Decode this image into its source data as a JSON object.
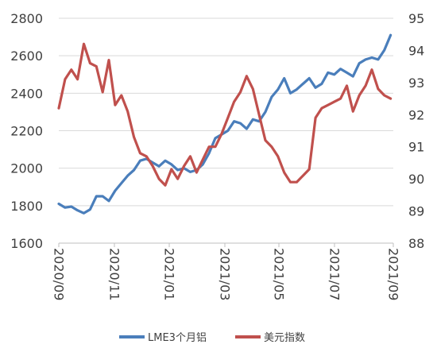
{
  "chart_data": {
    "type": "line",
    "x_ticks": [
      "2020/09",
      "2020/11",
      "2021/01",
      "2021/03",
      "2021/05",
      "2021/07",
      "2021/09"
    ],
    "x_range": [
      "2020-09-01",
      "2021-09-10"
    ],
    "left_axis": {
      "ticks": [
        "1600",
        "1800",
        "2000",
        "2200",
        "2400",
        "2600",
        "2800"
      ],
      "ylim": [
        1600,
        2800
      ]
    },
    "right_axis": {
      "ticks": [
        "88",
        "89",
        "90",
        "91",
        "92",
        "93",
        "94",
        "95"
      ],
      "ylim": [
        88,
        95
      ]
    },
    "grid": "horizontal, left axis",
    "legend_position": "bottom",
    "series": [
      {
        "name": "LME3个月铝",
        "axis": "left",
        "color": "#4a7ebb",
        "points": [
          [
            "2020-09-01",
            1810
          ],
          [
            "2020-09-08",
            1790
          ],
          [
            "2020-09-15",
            1795
          ],
          [
            "2020-09-22",
            1775
          ],
          [
            "2020-09-29",
            1760
          ],
          [
            "2020-10-06",
            1780
          ],
          [
            "2020-10-13",
            1850
          ],
          [
            "2020-10-20",
            1850
          ],
          [
            "2020-10-27",
            1825
          ],
          [
            "2020-11-03",
            1880
          ],
          [
            "2020-11-10",
            1920
          ],
          [
            "2020-11-17",
            1960
          ],
          [
            "2020-11-24",
            1990
          ],
          [
            "2020-12-01",
            2040
          ],
          [
            "2020-12-08",
            2050
          ],
          [
            "2020-12-15",
            2030
          ],
          [
            "2020-12-22",
            2010
          ],
          [
            "2020-12-29",
            2040
          ],
          [
            "2021-01-05",
            2020
          ],
          [
            "2021-01-12",
            1990
          ],
          [
            "2021-01-19",
            2000
          ],
          [
            "2021-01-26",
            1980
          ],
          [
            "2021-02-02",
            1990
          ],
          [
            "2021-02-09",
            2020
          ],
          [
            "2021-02-16",
            2080
          ],
          [
            "2021-02-23",
            2160
          ],
          [
            "2021-03-02",
            2180
          ],
          [
            "2021-03-09",
            2200
          ],
          [
            "2021-03-16",
            2250
          ],
          [
            "2021-03-23",
            2240
          ],
          [
            "2021-03-30",
            2210
          ],
          [
            "2021-04-06",
            2260
          ],
          [
            "2021-04-13",
            2250
          ],
          [
            "2021-04-20",
            2300
          ],
          [
            "2021-04-27",
            2380
          ],
          [
            "2021-05-04",
            2420
          ],
          [
            "2021-05-11",
            2480
          ],
          [
            "2021-05-18",
            2400
          ],
          [
            "2021-05-25",
            2420
          ],
          [
            "2021-06-01",
            2450
          ],
          [
            "2021-06-08",
            2480
          ],
          [
            "2021-06-15",
            2430
          ],
          [
            "2021-06-22",
            2450
          ],
          [
            "2021-06-29",
            2510
          ],
          [
            "2021-07-06",
            2500
          ],
          [
            "2021-07-13",
            2530
          ],
          [
            "2021-07-20",
            2510
          ],
          [
            "2021-07-27",
            2490
          ],
          [
            "2021-08-03",
            2560
          ],
          [
            "2021-08-10",
            2580
          ],
          [
            "2021-08-17",
            2590
          ],
          [
            "2021-08-24",
            2580
          ],
          [
            "2021-08-31",
            2630
          ],
          [
            "2021-09-07",
            2710
          ]
        ]
      },
      {
        "name": "美元指数",
        "axis": "right",
        "color": "#c0504d",
        "points": [
          [
            "2020-09-01",
            92.2
          ],
          [
            "2020-09-08",
            93.1
          ],
          [
            "2020-09-15",
            93.4
          ],
          [
            "2020-09-22",
            93.1
          ],
          [
            "2020-09-29",
            94.2
          ],
          [
            "2020-10-06",
            93.6
          ],
          [
            "2020-10-13",
            93.5
          ],
          [
            "2020-10-20",
            92.7
          ],
          [
            "2020-10-27",
            93.7
          ],
          [
            "2020-11-03",
            92.3
          ],
          [
            "2020-11-10",
            92.6
          ],
          [
            "2020-11-17",
            92.1
          ],
          [
            "2020-11-24",
            91.3
          ],
          [
            "2020-12-01",
            90.8
          ],
          [
            "2020-12-08",
            90.7
          ],
          [
            "2020-12-15",
            90.4
          ],
          [
            "2020-12-22",
            90.0
          ],
          [
            "2020-12-29",
            89.8
          ],
          [
            "2021-01-05",
            90.3
          ],
          [
            "2021-01-12",
            90.0
          ],
          [
            "2021-01-19",
            90.4
          ],
          [
            "2021-01-26",
            90.7
          ],
          [
            "2021-02-02",
            90.2
          ],
          [
            "2021-02-09",
            90.6
          ],
          [
            "2021-02-16",
            91.0
          ],
          [
            "2021-02-23",
            91.0
          ],
          [
            "2021-03-02",
            91.4
          ],
          [
            "2021-03-09",
            91.9
          ],
          [
            "2021-03-16",
            92.4
          ],
          [
            "2021-03-23",
            92.7
          ],
          [
            "2021-03-30",
            93.2
          ],
          [
            "2021-04-06",
            92.8
          ],
          [
            "2021-04-13",
            92.0
          ],
          [
            "2021-04-20",
            91.2
          ],
          [
            "2021-04-27",
            91.0
          ],
          [
            "2021-05-04",
            90.7
          ],
          [
            "2021-05-11",
            90.2
          ],
          [
            "2021-05-18",
            89.9
          ],
          [
            "2021-05-25",
            89.9
          ],
          [
            "2021-06-01",
            90.1
          ],
          [
            "2021-06-08",
            90.3
          ],
          [
            "2021-06-15",
            91.9
          ],
          [
            "2021-06-22",
            92.2
          ],
          [
            "2021-06-29",
            92.3
          ],
          [
            "2021-07-06",
            92.4
          ],
          [
            "2021-07-13",
            92.5
          ],
          [
            "2021-07-20",
            92.9
          ],
          [
            "2021-07-27",
            92.1
          ],
          [
            "2021-08-03",
            92.6
          ],
          [
            "2021-08-10",
            92.9
          ],
          [
            "2021-08-17",
            93.4
          ],
          [
            "2021-08-24",
            92.8
          ],
          [
            "2021-08-31",
            92.6
          ],
          [
            "2021-09-07",
            92.5
          ]
        ]
      }
    ]
  }
}
